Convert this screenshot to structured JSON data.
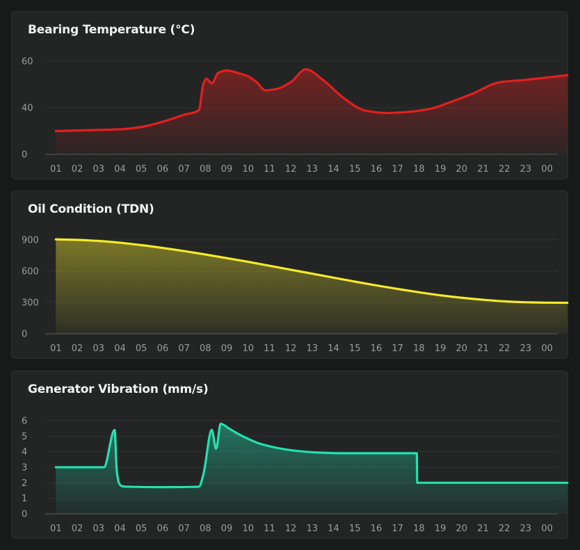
{
  "chart_data": [
    {
      "type": "area",
      "title": "Bearing Temperature (°C)",
      "color": "#e3201e",
      "y_ticks": [
        0,
        40,
        60
      ],
      "y_tick_labels": [
        "0",
        "40",
        "60"
      ],
      "categories": [
        "01",
        "02",
        "03",
        "04",
        "05",
        "06",
        "07",
        "08",
        "09",
        "10",
        "11",
        "12",
        "13",
        "14",
        "15",
        "16",
        "17",
        "18",
        "19",
        "20",
        "21",
        "22",
        "23",
        "00"
      ],
      "series": [
        {
          "name": "Bearing Temperature",
          "x": [
            0,
            1,
            2,
            3,
            4,
            5,
            6,
            6.7,
            6.9,
            7.05,
            7.3,
            7.6,
            8,
            8.5,
            9,
            9.4,
            9.8,
            10.3,
            11,
            11.7,
            12.5,
            13.5,
            14.5,
            15.5,
            16.5,
            17.5,
            18.5,
            19.5,
            20.8,
            22,
            23,
            23.95
          ],
          "y": [
            20,
            20.5,
            21,
            21.5,
            23.5,
            28,
            34,
            38,
            50,
            52.5,
            50.5,
            55,
            56,
            55,
            53.5,
            51,
            47.5,
            48,
            51,
            56.5,
            52,
            44,
            37.5,
            35.5,
            36.5,
            39,
            42.5,
            46,
            51,
            52,
            53,
            54
          ]
        }
      ]
    },
    {
      "type": "area",
      "title": "Oil Condition (TDN)",
      "color": "#f5ea2a",
      "y_ticks": [
        0,
        300,
        600,
        900
      ],
      "y_tick_labels": [
        "0",
        "300",
        "600",
        "900"
      ],
      "categories": [
        "01",
        "02",
        "03",
        "04",
        "05",
        "06",
        "07",
        "08",
        "09",
        "10",
        "11",
        "12",
        "13",
        "14",
        "15",
        "16",
        "17",
        "18",
        "19",
        "20",
        "21",
        "22",
        "23",
        "00"
      ],
      "series": [
        {
          "name": "Oil Condition",
          "x": [
            0,
            1,
            2,
            3,
            4,
            5,
            6,
            7,
            8,
            9,
            10,
            11,
            12,
            13,
            14,
            15,
            16,
            17,
            18,
            19,
            20,
            21,
            22,
            23,
            23.95
          ],
          "y": [
            905,
            900,
            890,
            873,
            850,
            823,
            793,
            760,
            725,
            690,
            652,
            614,
            576,
            538,
            500,
            464,
            430,
            398,
            369,
            345,
            326,
            311,
            302,
            298,
            297
          ]
        }
      ]
    },
    {
      "type": "area",
      "title": "Generator Vibration (mm/s)",
      "color": "#24e0b0",
      "y_ticks": [
        0,
        1,
        2,
        3,
        4,
        5,
        6
      ],
      "y_tick_labels": [
        "0",
        "1",
        "2",
        "3",
        "4",
        "5",
        "6"
      ],
      "categories": [
        "01",
        "02",
        "03",
        "04",
        "05",
        "06",
        "07",
        "08",
        "09",
        "10",
        "11",
        "12",
        "13",
        "14",
        "15",
        "16",
        "17",
        "18",
        "19",
        "20",
        "21",
        "22",
        "23",
        "00"
      ],
      "series": [
        {
          "name": "Generator Vibration",
          "x": [
            0,
            2.25,
            2.75,
            2.85,
            2.95,
            3.1,
            3.3,
            5,
            6.7,
            6.9,
            7.3,
            7.5,
            7.72,
            8.1,
            8.6,
            9.6,
            11,
            12.2,
            13.5,
            15,
            16.9,
            16.92,
            17.5,
            23.95
          ],
          "y": [
            3.0,
            3.0,
            5.4,
            2.8,
            2.0,
            1.78,
            1.75,
            1.72,
            1.75,
            2.5,
            5.4,
            4.2,
            5.8,
            5.5,
            5.1,
            4.5,
            4.1,
            3.95,
            3.9,
            3.9,
            3.9,
            2.0,
            2.0,
            2.0
          ]
        }
      ]
    }
  ]
}
